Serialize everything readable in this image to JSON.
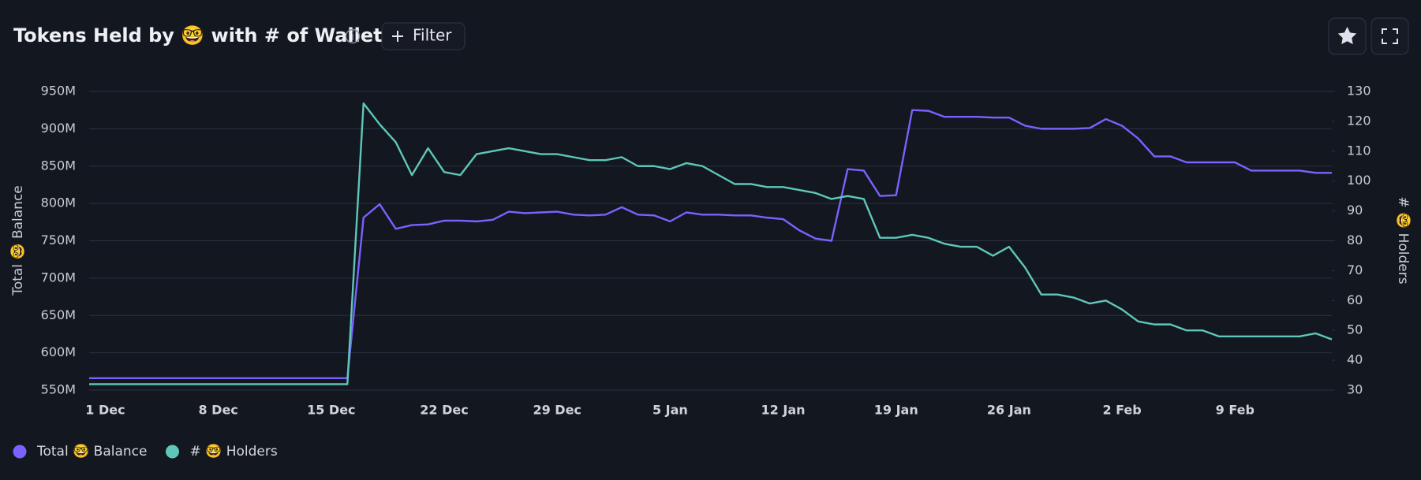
{
  "chart_data": {
    "type": "line",
    "title": "Tokens Held by 🤓 with # of Wallets",
    "ylabel": "Total 🤓 Balance",
    "y2label": "# 🤓 Holders",
    "categories": [
      null,
      "1 Dec",
      null,
      null,
      null,
      null,
      null,
      null,
      "8 Dec",
      null,
      null,
      null,
      null,
      null,
      null,
      "15 Dec",
      null,
      null,
      null,
      null,
      null,
      null,
      "22 Dec",
      null,
      null,
      null,
      null,
      null,
      null,
      "29 Dec",
      null,
      null,
      null,
      null,
      null,
      null,
      "5 Jan",
      null,
      null,
      null,
      null,
      null,
      null,
      "12 Jan",
      null,
      null,
      null,
      null,
      null,
      null,
      "19 Jan",
      null,
      null,
      null,
      null,
      null,
      null,
      "26 Jan",
      null,
      null,
      null,
      null,
      null,
      null,
      "2 Feb",
      null,
      null,
      null,
      null,
      null,
      null,
      "9 Feb",
      null,
      null,
      null,
      null,
      null,
      null
    ],
    "series": [
      {
        "name": "Total 🤓 Balance",
        "color": "#7b61ff",
        "values": [
          566,
          566,
          566,
          566,
          566,
          566,
          566,
          566,
          566,
          566,
          566,
          566,
          566,
          566,
          566,
          566,
          566,
          781,
          799,
          766,
          771,
          772,
          777,
          777,
          776,
          778,
          789,
          787,
          788,
          789,
          785,
          784,
          785,
          795,
          785,
          784,
          776,
          788,
          785,
          785,
          784,
          784,
          781,
          779,
          764,
          753,
          750,
          846,
          844,
          810,
          811,
          925,
          924,
          916,
          916,
          916,
          915,
          915,
          904,
          900,
          900,
          900,
          901,
          913,
          904,
          887,
          863,
          863,
          855,
          855,
          855,
          855,
          844,
          844,
          844,
          844,
          841,
          841
        ]
      },
      {
        "name": "# 🤓 Holders",
        "color": "#5fc7b9",
        "axis": "y2",
        "values": [
          32,
          32,
          32,
          32,
          32,
          32,
          32,
          32,
          32,
          32,
          32,
          32,
          32,
          32,
          32,
          32,
          32,
          126,
          119,
          113,
          102,
          111,
          103,
          102,
          109,
          110,
          111,
          110,
          109,
          109,
          108,
          107,
          107,
          108,
          105,
          105,
          104,
          106,
          105,
          102,
          99,
          99,
          98,
          98,
          97,
          96,
          94,
          95,
          94,
          81,
          81,
          82,
          81,
          79,
          78,
          78,
          75,
          78,
          71,
          62,
          62,
          61,
          59,
          60,
          57,
          53,
          52,
          52,
          50,
          50,
          48,
          48,
          48,
          48,
          48,
          48,
          49,
          47
        ]
      }
    ],
    "ylim": [
      550,
      950
    ],
    "yticks": [
      {
        "value": 550,
        "label": "550M"
      },
      {
        "value": 600,
        "label": "600M"
      },
      {
        "value": 650,
        "label": "650M"
      },
      {
        "value": 700,
        "label": "700M"
      },
      {
        "value": 750,
        "label": "750M"
      },
      {
        "value": 800,
        "label": "800M"
      },
      {
        "value": 850,
        "label": "850M"
      },
      {
        "value": 900,
        "label": "900M"
      },
      {
        "value": 950,
        "label": "950M"
      }
    ],
    "y2lim": [
      30,
      130
    ],
    "y2ticks": [
      30,
      40,
      50,
      60,
      70,
      80,
      90,
      100,
      110,
      120,
      130
    ],
    "grid": true,
    "legend": "bottom-left"
  },
  "toolbar": {
    "filter": "Filter"
  }
}
